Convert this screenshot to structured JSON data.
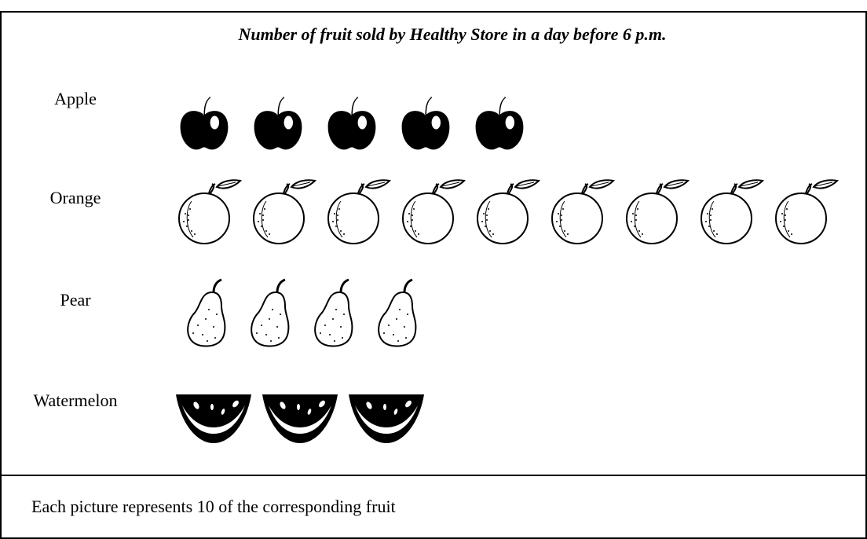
{
  "chart_data": {
    "type": "pictograph",
    "title": "Number of fruit sold by Healthy Store in a day before 6 p.m.",
    "categories": [
      "Apple",
      "Orange",
      "Pear",
      "Watermelon"
    ],
    "values": [
      5,
      9,
      4,
      3
    ],
    "key": "Each picture represents 10 of the corresponding fruit"
  }
}
